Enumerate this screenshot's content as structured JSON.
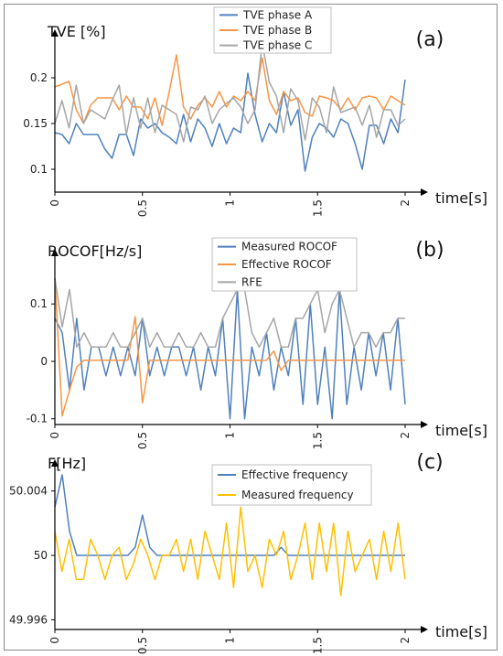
{
  "chart_data": [
    {
      "id": "a",
      "type": "line",
      "panel_label": "(a)",
      "ylabel": "TVE [%]",
      "xlabel": "time[s]",
      "xlim": [
        0,
        2
      ],
      "ylim": [
        0.075,
        0.245
      ],
      "x_ticks": [
        "0",
        "0.5",
        "1",
        "1.5",
        "2"
      ],
      "y_ticks": [
        0.1,
        0.15,
        0.2
      ],
      "y_tick_labels": [
        "0.1",
        "0.15",
        "0.2"
      ],
      "legend_position": "top-center",
      "series": [
        {
          "name": "TVE phase A",
          "color": "#4f81bd",
          "values": [
            0.14,
            0.138,
            0.128,
            0.15,
            0.138,
            0.138,
            0.138,
            0.122,
            0.112,
            0.138,
            0.138,
            0.115,
            0.155,
            0.145,
            0.15,
            0.14,
            0.135,
            0.128,
            0.16,
            0.13,
            0.155,
            0.145,
            0.125,
            0.15,
            0.128,
            0.145,
            0.14,
            0.205,
            0.16,
            0.13,
            0.15,
            0.14,
            0.185,
            0.148,
            0.165,
            0.098,
            0.135,
            0.15,
            0.145,
            0.135,
            0.155,
            0.15,
            0.128,
            0.1,
            0.148,
            0.148,
            0.128,
            0.155,
            0.14,
            0.198
          ]
        },
        {
          "name": "TVE phase B",
          "color": "#f79646",
          "values": [
            0.19,
            0.193,
            0.196,
            0.165,
            0.15,
            0.17,
            0.178,
            0.178,
            0.178,
            0.165,
            0.18,
            0.168,
            0.168,
            0.155,
            0.178,
            0.148,
            0.185,
            0.225,
            0.168,
            0.155,
            0.17,
            0.178,
            0.168,
            0.185,
            0.168,
            0.18,
            0.175,
            0.185,
            0.175,
            0.222,
            0.175,
            0.16,
            0.185,
            0.175,
            0.178,
            0.162,
            0.158,
            0.18,
            0.178,
            0.175,
            0.165,
            0.178,
            0.165,
            0.178,
            0.18,
            0.178,
            0.165,
            0.18,
            0.175,
            0.17
          ]
        },
        {
          "name": "TVE phase C",
          "color": "#a6a6a6",
          "values": [
            0.15,
            0.175,
            0.145,
            0.192,
            0.15,
            0.165,
            0.16,
            0.155,
            0.175,
            0.192,
            0.138,
            0.178,
            0.145,
            0.178,
            0.14,
            0.17,
            0.165,
            0.16,
            0.13,
            0.168,
            0.165,
            0.18,
            0.15,
            0.165,
            0.172,
            0.178,
            0.168,
            0.15,
            0.165,
            0.238,
            0.195,
            0.18,
            0.14,
            0.188,
            0.175,
            0.132,
            0.178,
            0.168,
            0.14,
            0.19,
            0.162,
            0.165,
            0.168,
            0.148,
            0.17,
            0.135,
            0.165,
            0.165,
            0.148,
            0.155
          ]
        }
      ]
    },
    {
      "id": "b",
      "type": "line",
      "panel_label": "(b)",
      "ylabel": "ROCOF[Hz/s]",
      "xlabel": "time[s]",
      "xlim": [
        0,
        2
      ],
      "ylim": [
        -0.11,
        0.18
      ],
      "x_ticks": [
        "0",
        "0.5",
        "1",
        "1.5",
        "2"
      ],
      "y_ticks": [
        -0.1,
        0,
        0.1
      ],
      "y_tick_labels": [
        "-0.1",
        "0",
        "0.1"
      ],
      "legend_position": "top-center",
      "series": [
        {
          "name": "Measured ROCOF",
          "color": "#4f81bd",
          "values": [
            0.075,
            0.05,
            -0.05,
            0.075,
            -0.05,
            0.025,
            0.025,
            -0.025,
            0.025,
            -0.025,
            0.025,
            -0.025,
            0.075,
            -0.025,
            0.025,
            -0.025,
            0.025,
            0.025,
            -0.025,
            0.025,
            -0.05,
            0.025,
            -0.025,
            0.075,
            -0.1,
            0.125,
            -0.1,
            0.025,
            -0.025,
            0.05,
            -0.05,
            0.025,
            -0.025,
            0.075,
            -0.075,
            0.1,
            -0.075,
            0.025,
            -0.1,
            0.125,
            -0.075,
            0.025,
            -0.05,
            0.05,
            -0.025,
            0.05,
            -0.05,
            0.075,
            -0.075
          ]
        },
        {
          "name": "Effective ROCOF",
          "color": "#f79646",
          "values": [
            0.145,
            -0.095,
            -0.05,
            -0.01,
            0.002,
            0.002,
            0.002,
            0.002,
            0.002,
            0.002,
            0.002,
            0.078,
            -0.072,
            0.002,
            0.002,
            0.002,
            0.002,
            0.002,
            0.002,
            0.002,
            0.002,
            0.002,
            0.002,
            0.002,
            0.002,
            0.002,
            0.002,
            0.002,
            0.002,
            0.002,
            0.018,
            -0.016,
            0.002,
            0.002,
            0.002,
            0.002,
            0.002,
            0.002,
            0.002,
            0.002,
            0.002,
            0.002,
            0.002,
            0.002,
            0.002,
            0.002,
            0.002,
            0.002,
            0.002
          ]
        },
        {
          "name": "RFE",
          "color": "#a6a6a6",
          "values": [
            0.145,
            0.06,
            0.125,
            0.025,
            0.05,
            0.025,
            0.025,
            0.025,
            0.05,
            0.025,
            0.025,
            0.05,
            0.075,
            0.025,
            0.05,
            0.025,
            0.025,
            0.05,
            0.025,
            0.025,
            0.05,
            0.025,
            0.025,
            0.075,
            0.1,
            0.125,
            0.125,
            0.05,
            0.025,
            0.05,
            0.075,
            0.025,
            0.025,
            0.075,
            0.075,
            0.1,
            0.125,
            0.05,
            0.1,
            0.125,
            0.075,
            0.025,
            0.05,
            0.05,
            0.025,
            0.05,
            0.05,
            0.075,
            0.075
          ]
        }
      ]
    },
    {
      "id": "c",
      "type": "line",
      "panel_label": "(c)",
      "ylabel": "F[Hz]",
      "xlabel": "time[s]",
      "xlim": [
        0,
        2
      ],
      "ylim": [
        49.9954,
        50.0054
      ],
      "x_ticks": [
        "0",
        "0.5",
        "1",
        "1.5",
        "2"
      ],
      "y_ticks": [
        49.996,
        50,
        50.004
      ],
      "y_tick_labels": [
        "49.996",
        "50",
        "50.004"
      ],
      "legend_position": "top-center",
      "series": [
        {
          "name": "Effective frequency",
          "color": "#4f81bd",
          "values": [
            50.003,
            50.005,
            50.0015,
            50.0,
            50.0,
            50.0,
            50.0,
            50.0,
            50.0,
            50.0,
            50.0,
            50.0005,
            50.0025,
            50.0005,
            50.0,
            50.0,
            50.0,
            50.0,
            50.0,
            50.0,
            50.0,
            50.0,
            50.0,
            50.0,
            50.0,
            50.0,
            50.0,
            50.0,
            50.0,
            50.0,
            50.0,
            50.0005,
            50.0,
            50.0,
            50.0,
            50.0,
            50.0,
            50.0,
            50.0,
            50.0,
            50.0,
            50.0,
            50.0,
            50.0,
            50.0,
            50.0,
            50.0,
            50.0,
            50.0
          ]
        },
        {
          "name": "Measured frequency",
          "color": "#ffc000",
          "values": [
            50.0015,
            49.999,
            50.001,
            49.9985,
            49.9985,
            50.001,
            50.0,
            49.9985,
            50.0,
            50.0005,
            49.9985,
            49.9995,
            50.001,
            50.0,
            49.9985,
            50.0,
            50.0,
            50.001,
            49.999,
            50.001,
            49.9985,
            50.0015,
            50.0,
            49.9985,
            50.002,
            49.998,
            50.003,
            49.999,
            50.0,
            49.998,
            50.001,
            50.0,
            50.0015,
            49.9985,
            50.0,
            50.002,
            49.9985,
            50.002,
            49.999,
            50.002,
            49.9975,
            50.0015,
            49.999,
            50.0,
            50.001,
            49.9985,
            50.0015,
            49.999,
            50.002,
            49.9985
          ]
        }
      ]
    }
  ]
}
